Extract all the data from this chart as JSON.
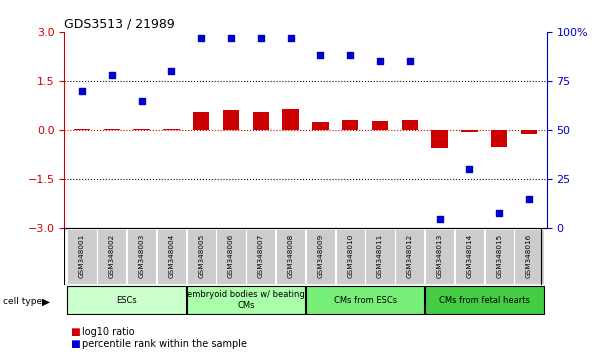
{
  "title": "GDS3513 / 21989",
  "samples": [
    "GSM348001",
    "GSM348002",
    "GSM348003",
    "GSM348004",
    "GSM348005",
    "GSM348006",
    "GSM348007",
    "GSM348008",
    "GSM348009",
    "GSM348010",
    "GSM348011",
    "GSM348012",
    "GSM348013",
    "GSM348014",
    "GSM348015",
    "GSM348016"
  ],
  "log10_ratio": [
    0.02,
    0.04,
    0.03,
    0.02,
    0.55,
    0.62,
    0.55,
    0.65,
    0.25,
    0.3,
    0.28,
    0.3,
    -0.55,
    -0.05,
    -0.52,
    -0.12
  ],
  "percentile_rank": [
    70,
    78,
    65,
    80,
    97,
    97,
    97,
    97,
    88,
    88,
    85,
    85,
    5,
    30,
    8,
    15
  ],
  "ylim_left": [
    -3,
    3
  ],
  "ylim_right": [
    0,
    100
  ],
  "yticks_left": [
    -3,
    -1.5,
    0,
    1.5,
    3
  ],
  "yticks_right": [
    0,
    25,
    50,
    75,
    100
  ],
  "bar_color": "#cc0000",
  "point_color": "#0000cc",
  "cell_groups": [
    {
      "label": "ESCs",
      "start": 0,
      "end": 3,
      "color": "#ccffcc"
    },
    {
      "label": "embryoid bodies w/ beating\nCMs",
      "start": 4,
      "end": 7,
      "color": "#aaffaa"
    },
    {
      "label": "CMs from ESCs",
      "start": 8,
      "end": 11,
      "color": "#77ee77"
    },
    {
      "label": "CMs from fetal hearts",
      "start": 12,
      "end": 15,
      "color": "#44cc44"
    }
  ],
  "legend_bar_label": "log10 ratio",
  "legend_point_label": "percentile rank within the sample",
  "xlabel_cell_type": "cell type",
  "tick_label_color_right": "#0000cc",
  "sample_box_color": "#cccccc",
  "right_tick_pct_label": "100%"
}
